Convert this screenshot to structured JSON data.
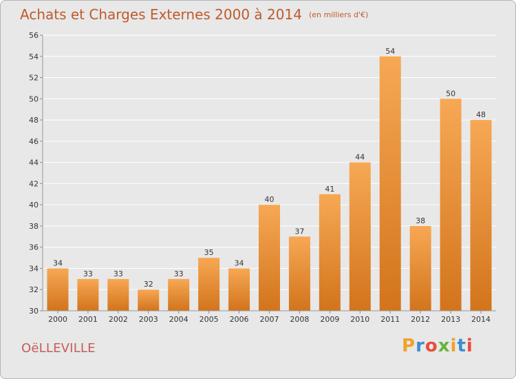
{
  "title": "Achats et Charges Externes 2000 à 2014",
  "unit": "(en milliers d'€)",
  "commune": "OëLLEVILLE",
  "logo": {
    "letters": [
      "P",
      "r",
      "o",
      "x",
      "i",
      "t",
      "i"
    ],
    "colors": [
      "#f2a128",
      "#3b8dd0",
      "#e84d3c",
      "#6ab23a",
      "#f2a128",
      "#3b8dd0",
      "#e84d3c"
    ]
  },
  "colors": {
    "bar_light": "#f7a854",
    "bar_dark": "#d2741c",
    "title": "#c05a2c",
    "background": "#e8e8e8"
  },
  "chart_data": {
    "type": "bar",
    "categories": [
      "2000",
      "2001",
      "2002",
      "2003",
      "2004",
      "2005",
      "2006",
      "2007",
      "2008",
      "2009",
      "2010",
      "2011",
      "2012",
      "2013",
      "2014"
    ],
    "values": [
      34,
      33,
      33,
      32,
      33,
      35,
      34,
      40,
      37,
      41,
      44,
      54,
      38,
      50,
      48
    ],
    "ylim": [
      30,
      56
    ],
    "yticks": [
      30,
      32,
      34,
      36,
      38,
      40,
      42,
      44,
      46,
      48,
      50,
      52,
      54,
      56
    ],
    "grid": true,
    "title": "Achats et Charges Externes 2000 à 2014"
  }
}
